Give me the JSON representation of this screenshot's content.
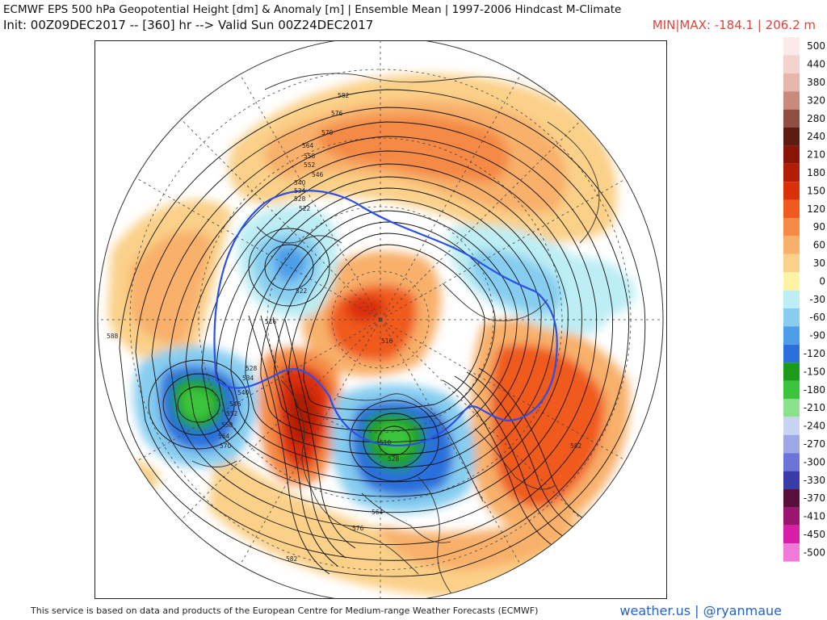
{
  "header": {
    "title": "ECMWF EPS 500 hPa Geopotential Height [dm] & Anomaly [m] | Ensemble Mean | 1997-2006 Hindcast M-Climate",
    "init_line": "Init: 00Z09DEC2017 -- [360] hr --> Valid Sun 00Z24DEC2017",
    "minmax": "MIN|MAX: -184.1 | 206.2 m"
  },
  "footer": {
    "attribution": "This service is based on data and products of the European Centre for Medium-range Weather Forecasts (ECMWF)",
    "site": "weather.us",
    "separator": " | ",
    "handle": "@ryanmaue"
  },
  "legend": {
    "items": [
      {
        "label": "500",
        "color": "#fbeae8"
      },
      {
        "label": "440",
        "color": "#f2d3cd"
      },
      {
        "label": "380",
        "color": "#e6b5ab"
      },
      {
        "label": "320",
        "color": "#c98a7c"
      },
      {
        "label": "280",
        "color": "#8e4e40"
      },
      {
        "label": "240",
        "color": "#5c1a10"
      },
      {
        "label": "210",
        "color": "#8a1406"
      },
      {
        "label": "180",
        "color": "#b31c06"
      },
      {
        "label": "150",
        "color": "#db2f08"
      },
      {
        "label": "120",
        "color": "#f05a1e"
      },
      {
        "label": "90",
        "color": "#f48a45"
      },
      {
        "label": "60",
        "color": "#f8b06a"
      },
      {
        "label": "30",
        "color": "#fbd089"
      },
      {
        "label": "0",
        "color": "#fdf3a6"
      },
      {
        "label": "-30",
        "color": "#bdeef5"
      },
      {
        "label": "-60",
        "color": "#86cdf0"
      },
      {
        "label": "-90",
        "color": "#4d9ee8"
      },
      {
        "label": "-120",
        "color": "#2b6fdc"
      },
      {
        "label": "-150",
        "color": "#1a9b1a"
      },
      {
        "label": "-180",
        "color": "#3dc43d"
      },
      {
        "label": "-210",
        "color": "#8be08b"
      },
      {
        "label": "-240",
        "color": "#c8d2f2"
      },
      {
        "label": "-270",
        "color": "#9ea8e8"
      },
      {
        "label": "-300",
        "color": "#6c74d8"
      },
      {
        "label": "-330",
        "color": "#3a3aa8"
      },
      {
        "label": "-370",
        "color": "#5a0f3a"
      },
      {
        "label": "-410",
        "color": "#9a1470"
      },
      {
        "label": "-450",
        "color": "#d81ea8"
      },
      {
        "label": "-500",
        "color": "#f07ad8"
      }
    ]
  },
  "map": {
    "contour_labels": [
      {
        "text": "582"
      },
      {
        "text": "576"
      },
      {
        "text": "570"
      },
      {
        "text": "564"
      },
      {
        "text": "558"
      },
      {
        "text": "552"
      },
      {
        "text": "546"
      },
      {
        "text": "540"
      },
      {
        "text": "534"
      },
      {
        "text": "528"
      },
      {
        "text": "522"
      },
      {
        "text": "516"
      },
      {
        "text": "510"
      },
      {
        "text": "504"
      },
      {
        "text": "588"
      }
    ]
  }
}
